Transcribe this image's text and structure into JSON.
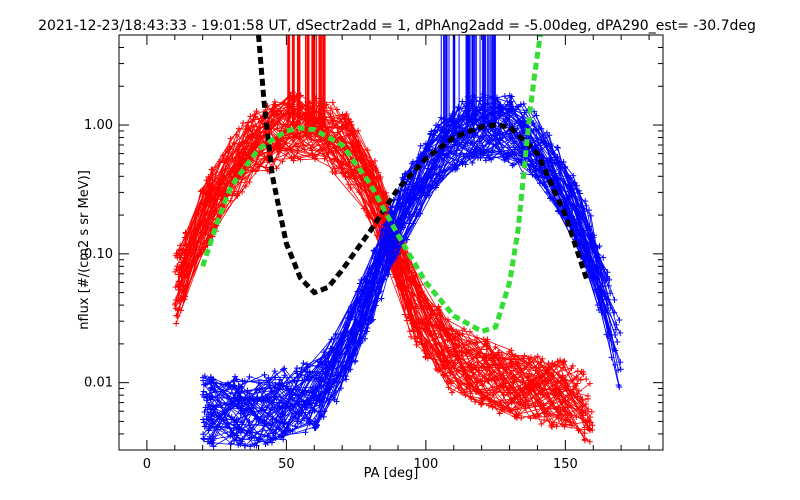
{
  "chart_data": {
    "type": "line",
    "title": "2021-12-23/18:43:33 - 19:01:58 UT, dSectr2add = 1, dPhAng2add = -5.00deg, dPA290_est= -30.7deg",
    "xlabel": "PA [deg]",
    "ylabel": "nflux [#/(cm2 s sr MeV)]",
    "xlim": [
      -10,
      185
    ],
    "ylim": [
      0.003,
      5
    ],
    "yscale": "log",
    "grid": false,
    "x_ticks": [
      "0",
      "50",
      "100",
      "150"
    ],
    "y_ticks": [
      "0.01",
      "0.10",
      "1.00"
    ],
    "series": [
      {
        "color": "#ff0000",
        "style": "bundle",
        "points": [
          [
            10,
            0.05
          ],
          [
            20,
            0.18
          ],
          [
            30,
            0.45
          ],
          [
            40,
            0.75
          ],
          [
            50,
            0.92
          ],
          [
            55,
            1.0
          ],
          [
            60,
            0.95
          ],
          [
            70,
            0.75
          ],
          [
            80,
            0.35
          ],
          [
            90,
            0.1
          ],
          [
            95,
            0.04
          ],
          [
            110,
            0.015
          ],
          [
            130,
            0.01
          ],
          [
            150,
            0.008
          ],
          [
            160,
            0.006
          ]
        ],
        "spike_x": [
          50,
          65
        ]
      },
      {
        "color": "#0000ff",
        "style": "bundle",
        "points": [
          [
            20,
            0.006
          ],
          [
            40,
            0.006
          ],
          [
            60,
            0.008
          ],
          [
            70,
            0.015
          ],
          [
            80,
            0.05
          ],
          [
            90,
            0.18
          ],
          [
            100,
            0.45
          ],
          [
            110,
            0.8
          ],
          [
            120,
            0.97
          ],
          [
            125,
            1.0
          ],
          [
            130,
            0.95
          ],
          [
            140,
            0.65
          ],
          [
            150,
            0.3
          ],
          [
            160,
            0.1
          ],
          [
            165,
            0.04
          ],
          [
            170,
            0.015
          ]
        ],
        "spike_x": [
          105,
          125
        ]
      },
      {
        "color": "#000000",
        "style": "dashed-fit",
        "points": [
          [
            40,
            5
          ],
          [
            42,
            1.5
          ],
          [
            45,
            0.4
          ],
          [
            50,
            0.12
          ],
          [
            55,
            0.065
          ],
          [
            60,
            0.05
          ],
          [
            65,
            0.055
          ],
          [
            70,
            0.075
          ],
          [
            80,
            0.15
          ],
          [
            90,
            0.32
          ],
          [
            100,
            0.55
          ],
          [
            110,
            0.8
          ],
          [
            120,
            0.97
          ],
          [
            125,
            1.0
          ],
          [
            130,
            0.97
          ],
          [
            140,
            0.6
          ],
          [
            150,
            0.2
          ],
          [
            158,
            0.06
          ]
        ]
      },
      {
        "color": "#33dd33",
        "style": "dashed-fit",
        "points": [
          [
            20,
            0.08
          ],
          [
            25,
            0.17
          ],
          [
            30,
            0.33
          ],
          [
            40,
            0.65
          ],
          [
            50,
            0.9
          ],
          [
            55,
            0.95
          ],
          [
            60,
            0.92
          ],
          [
            70,
            0.7
          ],
          [
            80,
            0.35
          ],
          [
            90,
            0.14
          ],
          [
            100,
            0.06
          ],
          [
            110,
            0.033
          ],
          [
            120,
            0.025
          ],
          [
            125,
            0.027
          ],
          [
            130,
            0.06
          ],
          [
            133,
            0.15
          ],
          [
            135,
            0.4
          ],
          [
            137,
            1.1
          ],
          [
            139,
            2.5
          ],
          [
            141,
            5
          ]
        ]
      }
    ]
  }
}
